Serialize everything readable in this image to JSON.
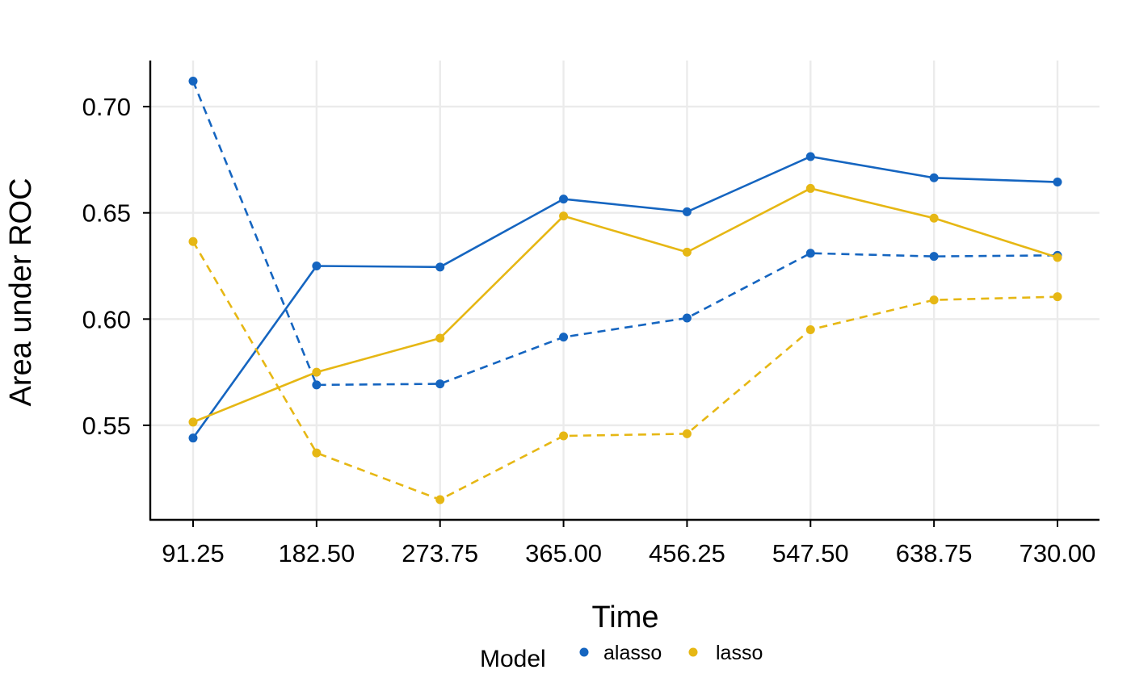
{
  "chart_data": {
    "type": "line",
    "xlabel": "Time",
    "ylabel": "Area under ROC",
    "x": [
      91.25,
      182.5,
      273.75,
      365.0,
      456.25,
      547.5,
      638.75,
      730.0
    ],
    "x_tick_labels": [
      "91.25",
      "182.50",
      "273.75",
      "365.00",
      "456.25",
      "547.50",
      "638.75",
      "730.00"
    ],
    "y_ticks": [
      0.55,
      0.6,
      0.65,
      0.7
    ],
    "y_tick_labels": [
      "0.55",
      "0.60",
      "0.65",
      "0.70"
    ],
    "ylim": [
      0.5055,
      0.7217
    ],
    "grid": true,
    "legend": {
      "title": "Model",
      "position": "bottom",
      "entries": [
        "alasso",
        "lasso"
      ]
    },
    "colors": {
      "alasso": "#1565C0",
      "lasso": "#E6B714"
    },
    "series": [
      {
        "name": "alasso",
        "linetype": "solid",
        "values": [
          0.544,
          0.625,
          0.6245,
          0.6565,
          0.6505,
          0.6765,
          0.6665,
          0.6645
        ]
      },
      {
        "name": "alasso",
        "linetype": "dashed",
        "values": [
          0.712,
          0.569,
          0.5695,
          0.5915,
          0.6005,
          0.631,
          0.6295,
          0.63
        ]
      },
      {
        "name": "lasso",
        "linetype": "solid",
        "values": [
          0.5515,
          0.575,
          0.591,
          0.6485,
          0.6315,
          0.6615,
          0.6475,
          0.629
        ]
      },
      {
        "name": "lasso",
        "linetype": "dashed",
        "values": [
          0.6365,
          0.537,
          0.515,
          0.545,
          0.546,
          0.595,
          0.609,
          0.6105
        ]
      }
    ]
  }
}
